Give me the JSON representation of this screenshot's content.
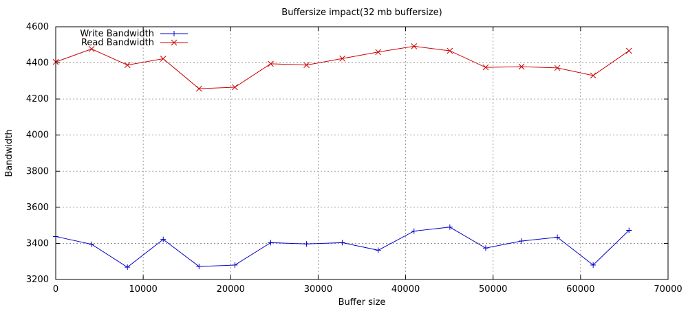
{
  "chart_data": {
    "type": "line",
    "title": "Buffersize impact(32 mb buffersize)",
    "xlabel": "Buffer size",
    "ylabel": "Bandwidth",
    "xlim": [
      0,
      70000
    ],
    "ylim": [
      3200,
      4600
    ],
    "xticks": [
      0,
      10000,
      20000,
      30000,
      40000,
      50000,
      60000,
      70000
    ],
    "yticks": [
      3200,
      3400,
      3600,
      3800,
      4000,
      4200,
      4400,
      4600
    ],
    "grid": true,
    "legend_position": "top-left",
    "x": [
      0,
      4096,
      8192,
      12288,
      16384,
      20480,
      24576,
      28672,
      32768,
      36864,
      40960,
      45056,
      49152,
      53248,
      57344,
      61440,
      65536
    ],
    "series": [
      {
        "name": "Write Bandwidth",
        "color": "#0000cc",
        "marker": "plus",
        "values": [
          3438,
          3395,
          3268,
          3422,
          3272,
          3280,
          3404,
          3397,
          3404,
          3362,
          3468,
          3490,
          3374,
          3413,
          3434,
          3280,
          3472
        ]
      },
      {
        "name": "Read Bandwidth",
        "color": "#cc0000",
        "marker": "cross",
        "values": [
          4405,
          4477,
          4388,
          4423,
          4257,
          4265,
          4395,
          4388,
          4424,
          4460,
          4492,
          4467,
          4375,
          4379,
          4372,
          4330,
          4467
        ]
      }
    ]
  }
}
